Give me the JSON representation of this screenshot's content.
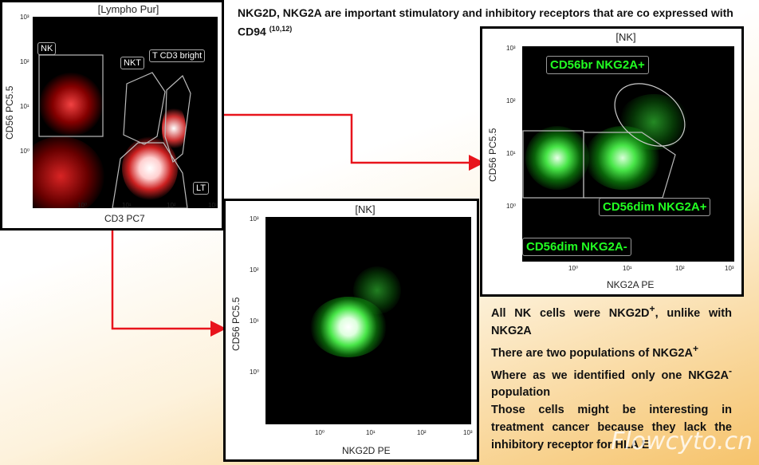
{
  "headline": {
    "text": "NKG2D, NKG2A  are important stimulatory and inhibitory receptors that are co expressed with CD94",
    "ref": "(10,12)"
  },
  "plot1": {
    "title": "[Lympho Pur]",
    "xlabel": "CD3 PC7",
    "ylabel": "CD56 PC5.5",
    "gates": [
      "NK",
      "NKT",
      "T CD3 bright",
      "LT"
    ]
  },
  "plot2": {
    "title": "[NK]",
    "xlabel": "NKG2A PE",
    "ylabel": "CD56 PC5.5",
    "gates": [
      "CD56br NKG2A+",
      "CD56dim NKG2A+",
      "CD56dim NKG2A-"
    ]
  },
  "plot3": {
    "title": "[NK]",
    "xlabel": "NKG2D PE",
    "ylabel": "CD56 PC5.5"
  },
  "ticks": {
    "y": [
      "10³",
      "10²",
      "10¹",
      "10⁰"
    ],
    "x": [
      "10⁰",
      "10¹",
      "10²",
      "10³"
    ]
  },
  "notes": {
    "line1a": "All NK cells were NKG2D",
    "line1sup": "+",
    "line1b": ", unlike with NKG2A",
    "line2a": "There are two populations of NKG2A",
    "line2sup": "+",
    "line3a": "Where as we identified only one NKG2A",
    "line3sup": "-",
    "line3b": " population",
    "line4": "Those cells might be interesting in treatment cancer because they lack the inhibitory receptor for HLA E"
  },
  "watermark": "Flowcyto.cn",
  "colors": {
    "arrow": "#e8141c",
    "red_events": "#ff2a2a",
    "green_events": "#2fff2f"
  }
}
